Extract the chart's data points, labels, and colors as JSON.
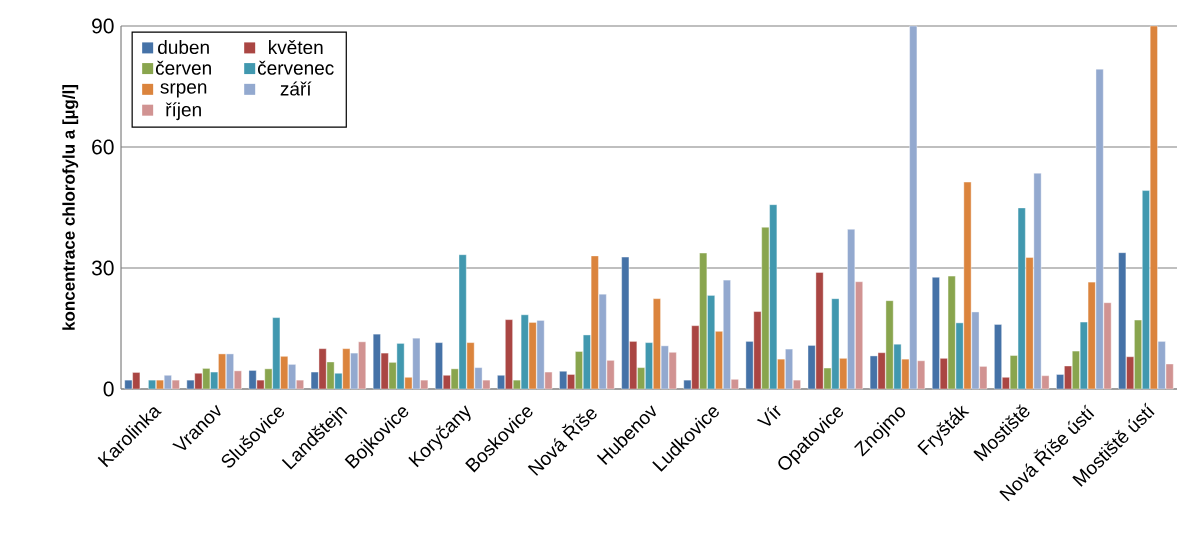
{
  "chart_data": {
    "type": "bar",
    "ylabel": "koncentrace chlorofylu a [µg/l]",
    "categories": [
      "Karolinka",
      "Vranov",
      "Slušovice",
      "Landštejn",
      "Bojkovice",
      "Koryčany",
      "Boskovice",
      "Nová Říše",
      "Hubenov",
      "Ludkovice",
      "Vír",
      "Opatovice",
      "Znojmo",
      "Fryšták",
      "Mostiště",
      "Nová Říše ústí",
      "Mostiště ústí"
    ],
    "series": [
      {
        "name": "duben",
        "color": "#4572a7",
        "values": [
          2.2,
          2.2,
          4.6,
          4.2,
          13.6,
          11.5,
          3.4,
          4.4,
          32.7,
          2.2,
          11.8,
          10.8,
          8.2,
          27.7,
          16.0,
          3.6,
          33.8
        ]
      },
      {
        "name": "květen",
        "color": "#aa4643",
        "values": [
          4.1,
          3.9,
          2.2,
          10.0,
          8.9,
          3.4,
          17.2,
          3.6,
          11.8,
          15.7,
          19.2,
          28.9,
          9.0,
          7.6,
          2.9,
          5.7,
          8.0
        ]
      },
      {
        "name": "červen",
        "color": "#89a54e",
        "values": [
          null,
          5.1,
          5.0,
          6.7,
          6.6,
          5.0,
          2.2,
          9.3,
          5.3,
          33.7,
          40.1,
          5.2,
          21.9,
          28.0,
          8.3,
          9.4,
          17.1
        ]
      },
      {
        "name": "červenec",
        "color": "#4198af",
        "values": [
          2.2,
          4.2,
          17.7,
          3.9,
          11.3,
          33.3,
          18.4,
          13.4,
          11.5,
          23.2,
          45.7,
          22.4,
          11.1,
          16.4,
          44.9,
          16.6,
          49.2
        ]
      },
      {
        "name": "srpen",
        "color": "#db843d",
        "values": [
          2.2,
          8.7,
          8.1,
          10.0,
          2.9,
          11.5,
          16.5,
          33.0,
          22.4,
          14.3,
          7.4,
          7.6,
          7.4,
          51.3,
          32.6,
          26.5,
          90
        ]
      },
      {
        "name": "září",
        "color": "#93a9cf",
        "values": [
          3.4,
          8.7,
          6.1,
          8.9,
          12.6,
          5.3,
          17.0,
          23.5,
          10.7,
          27.0,
          9.9,
          39.6,
          90,
          19.1,
          53.5,
          79.3,
          11.8
        ]
      },
      {
        "name": "říjen",
        "color": "#d19392",
        "values": [
          2.2,
          4.5,
          2.2,
          11.7,
          2.2,
          2.2,
          4.2,
          7.1,
          9.1,
          2.4,
          2.2,
          26.6,
          7.0,
          5.6,
          3.3,
          21.4,
          6.2
        ]
      }
    ],
    "ylim": [
      0,
      90
    ],
    "yticks": [
      0,
      30,
      60,
      90
    ],
    "grid": "y",
    "legend": "top left"
  }
}
